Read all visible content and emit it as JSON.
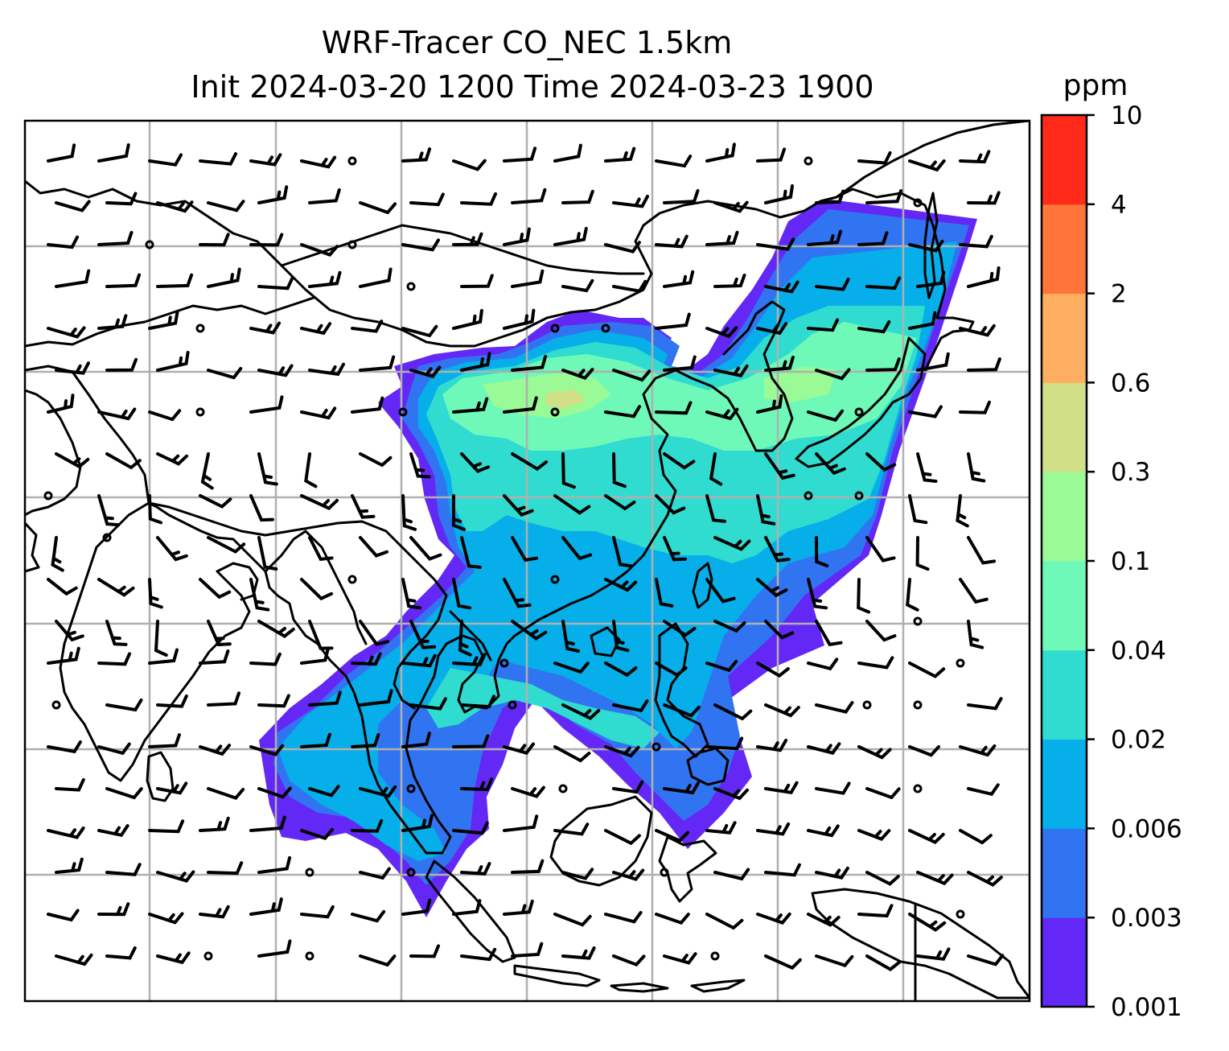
{
  "title": {
    "line1": "WRF-Tracer CO_NEC 1.5km",
    "line2": "Init 2024-03-20 1200 Time 2024-03-23 1900"
  },
  "colorbar": {
    "unit": "ppm",
    "tick_labels": [
      "0.001",
      "0.003",
      "0.006",
      "0.02",
      "0.04",
      "0.1",
      "0.3",
      "0.6",
      "2",
      "4",
      "10"
    ],
    "colors": [
      "#6328f5",
      "#3174f1",
      "#06afe9",
      "#30dcd0",
      "#6ff9b9",
      "#9afa96",
      "#d1e086",
      "#fdae61",
      "#ff7438",
      "#ff2a19"
    ]
  },
  "map": {
    "gridlines": "on",
    "features": [
      "coastlines",
      "country borders",
      "wind barbs",
      "CO tracer concentration shading"
    ]
  }
}
